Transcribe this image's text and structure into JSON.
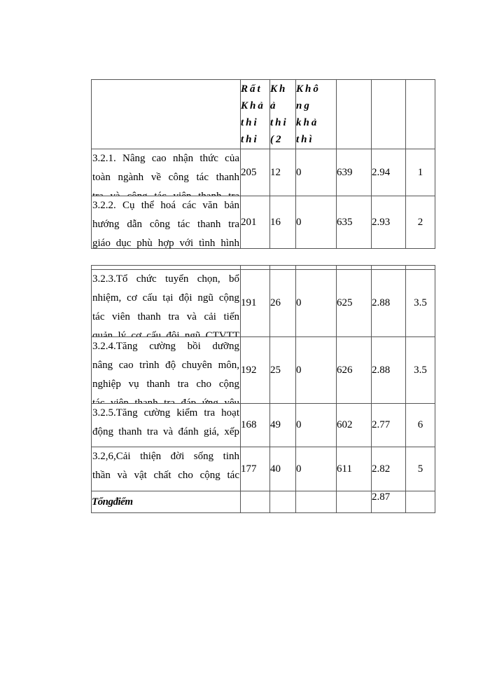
{
  "header": {
    "col_very_feasible": [
      "Rất",
      "Khả",
      "thi",
      "thi"
    ],
    "col_feasible": [
      "Kh",
      "ả",
      "thi",
      "(2"
    ],
    "col_not_feasible": [
      "Khô",
      "ng",
      "khả",
      "thì"
    ]
  },
  "rows": [
    {
      "lines": [
        "3.2.1. Nâng cao nhận thức của",
        "toàn ngành về công tác thanh",
        "tra và công tác viên thanh tra"
      ],
      "very": "205",
      "feasible": "12",
      "not": "0",
      "total": "639",
      "mean": "2.94",
      "rank": "1"
    },
    {
      "lines": [
        "3.2.2. Cụ thể hoá các văn bản",
        "hướng dẫn công tác thanh tra",
        "giáo dục phù hợp với tình hình"
      ],
      "very": "201",
      "feasible": "16",
      "not": "0",
      "total": "635",
      "mean": "2.93",
      "rank": "2"
    },
    {
      "lines": [
        "3.2.3.Tổ chức tuyển chọn, bổ",
        "nhiệm, cơ cấu tại đội ngũ cộng",
        "tác viên thanh tra và cải tiến",
        "quản lý cơ cấu đội ngũ CTVTT"
      ],
      "very": "191",
      "feasible": "26",
      "not": "0",
      "total": "625",
      "mean": "2.88",
      "rank": "3.5"
    },
    {
      "lines": [
        "3.2.4.Tăng cường bồi dưỡng",
        "nâng cao trình độ chuyên môn,",
        "nghiệp vụ thanh tra cho cộng",
        "tác viên thanh tra đáp ứng yêu"
      ],
      "very": "192",
      "feasible": "25",
      "not": "0",
      "total": "626",
      "mean": "2.88",
      "rank": "3.5"
    },
    {
      "lines": [
        "3.2.5.Tăng cường kiểm tra hoạt",
        "động thanh tra và đánh giá, xếp"
      ],
      "very": "168",
      "feasible": "49",
      "not": "0",
      "total": "602",
      "mean": "2.77",
      "rank": "6"
    },
    {
      "lines": [
        "3.2,6,Cải thiện đời sống tinh",
        "thần và vật chất cho cộng tác"
      ],
      "very": "177",
      "feasible": "40",
      "not": "0",
      "total": "611",
      "mean": "2.82",
      "rank": "5"
    }
  ],
  "total_row": {
    "label": "Tổngđiểm",
    "mean": "2.87"
  }
}
